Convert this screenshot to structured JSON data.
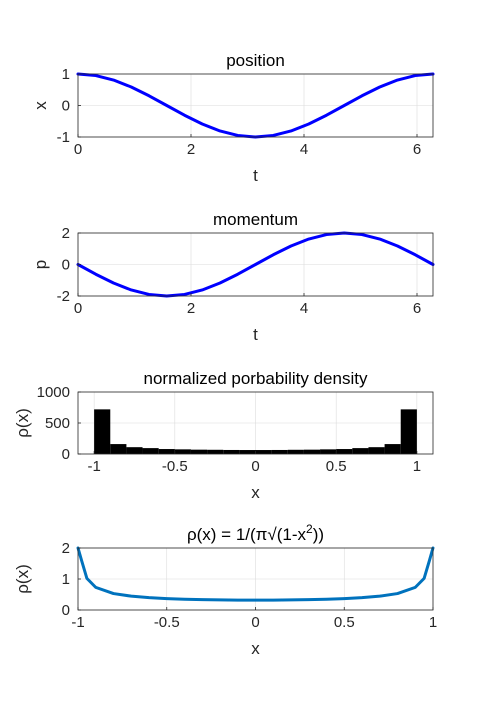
{
  "chart_data": [
    {
      "type": "line",
      "title": "position",
      "xlabel": "t",
      "ylabel": "x",
      "xlim": [
        0,
        6.2832
      ],
      "ylim": [
        -1,
        1
      ],
      "xticks": [
        0,
        2,
        4,
        6
      ],
      "xtick_labels": [
        "0",
        "2",
        "4",
        "6"
      ],
      "yticks": [
        -1,
        0,
        1
      ],
      "ytick_labels": [
        "-1",
        "0",
        "1"
      ],
      "grid": true,
      "color": "#0000ff",
      "series": [
        {
          "x": [
            0.0,
            0.3142,
            0.6283,
            0.9425,
            1.2566,
            1.5708,
            1.885,
            2.1991,
            2.5133,
            2.8274,
            3.1416,
            3.4558,
            3.7699,
            4.0841,
            4.3982,
            4.7124,
            5.0265,
            5.3407,
            5.6549,
            5.969,
            6.2832
          ],
          "values": [
            1.0,
            0.951,
            0.809,
            0.588,
            0.309,
            0.0,
            -0.309,
            -0.588,
            -0.809,
            -0.951,
            -1.0,
            -0.951,
            -0.809,
            -0.588,
            -0.309,
            0.0,
            0.309,
            0.588,
            0.809,
            0.951,
            1.0
          ]
        }
      ]
    },
    {
      "type": "line",
      "title": "momentum",
      "xlabel": "t",
      "ylabel": "p",
      "xlim": [
        0,
        6.2832
      ],
      "ylim": [
        -2,
        2
      ],
      "xticks": [
        0,
        2,
        4,
        6
      ],
      "xtick_labels": [
        "0",
        "2",
        "4",
        "6"
      ],
      "yticks": [
        -2,
        0,
        2
      ],
      "ytick_labels": [
        "-2",
        "0",
        "2"
      ],
      "grid": true,
      "color": "#0000ff",
      "series": [
        {
          "x": [
            0.0,
            0.3142,
            0.6283,
            0.9425,
            1.2566,
            1.5708,
            1.885,
            2.1991,
            2.5133,
            2.8274,
            3.1416,
            3.4558,
            3.7699,
            4.0841,
            4.3982,
            4.7124,
            5.0265,
            5.3407,
            5.6549,
            5.969,
            6.2832
          ],
          "values": [
            0.0,
            -0.618,
            -1.176,
            -1.618,
            -1.902,
            -2.0,
            -1.902,
            -1.618,
            -1.176,
            -0.618,
            0.0,
            0.618,
            1.176,
            1.618,
            1.902,
            2.0,
            1.902,
            1.618,
            1.176,
            0.618,
            0.0
          ]
        }
      ]
    },
    {
      "type": "bar",
      "title": "normalized porbability density",
      "xlabel": "x",
      "ylabel": "ρ(x)",
      "xlim": [
        -1.1,
        1.1
      ],
      "ylim": [
        0,
        1000
      ],
      "xticks": [
        -1,
        -0.5,
        0,
        0.5,
        1
      ],
      "xtick_labels": [
        "-1",
        "-0.5",
        "0",
        "0.5",
        "1"
      ],
      "yticks": [
        0,
        500,
        1000
      ],
      "ytick_labels": [
        "0",
        "500",
        "1000"
      ],
      "grid": true,
      "color": "#000000",
      "bins": {
        "start": -1.0,
        "end": 1.0,
        "count": 20
      },
      "values": [
        720,
        160,
        110,
        95,
        80,
        75,
        70,
        68,
        65,
        64,
        64,
        65,
        68,
        70,
        75,
        80,
        95,
        110,
        160,
        720
      ]
    },
    {
      "type": "line",
      "title": "ρ(x) = 1/(π√(1-x²))",
      "title_parts": {
        "lhs": "ρ(x) = 1/(π√(1-x",
        "sup": "2",
        "rhs": "))"
      },
      "xlabel": "x",
      "ylabel": "ρ(x)",
      "xlim": [
        -1,
        1
      ],
      "ylim": [
        0,
        2
      ],
      "xticks": [
        -1,
        -0.5,
        0,
        0.5,
        1
      ],
      "xtick_labels": [
        "-1",
        "-0.5",
        "0",
        "0.5",
        "1"
      ],
      "yticks": [
        0,
        1,
        2
      ],
      "ytick_labels": [
        "0",
        "1",
        "2"
      ],
      "grid": true,
      "color": "#0072bd",
      "series": [
        {
          "x": [
            -0.9999,
            -0.98,
            -0.95,
            -0.9,
            -0.8,
            -0.7,
            -0.6,
            -0.5,
            -0.4,
            -0.3,
            -0.2,
            -0.1,
            0.0,
            0.1,
            0.2,
            0.3,
            0.4,
            0.5,
            0.6,
            0.7,
            0.8,
            0.9,
            0.95,
            0.98,
            0.9999
          ],
          "values": [
            2.0,
            1.6,
            1.02,
            0.73,
            0.53,
            0.446,
            0.398,
            0.368,
            0.347,
            0.334,
            0.325,
            0.32,
            0.318,
            0.32,
            0.325,
            0.334,
            0.347,
            0.368,
            0.398,
            0.446,
            0.53,
            0.73,
            1.02,
            1.6,
            2.0
          ]
        }
      ]
    }
  ]
}
